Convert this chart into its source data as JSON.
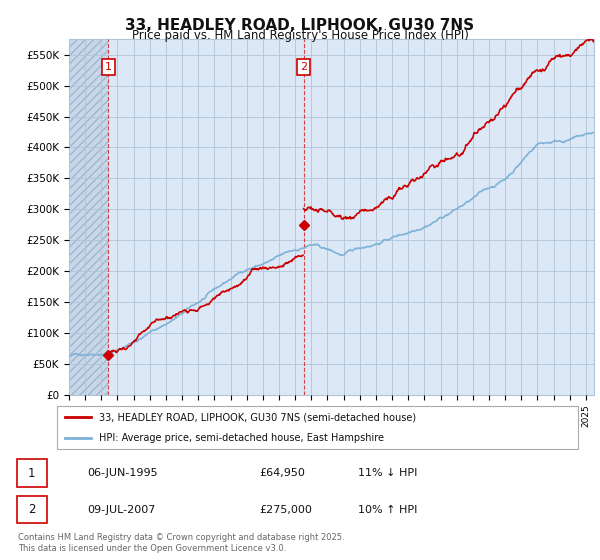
{
  "title": "33, HEADLEY ROAD, LIPHOOK, GU30 7NS",
  "subtitle": "Price paid vs. HM Land Registry's House Price Index (HPI)",
  "ylim": [
    0,
    575000
  ],
  "yticks": [
    0,
    50000,
    100000,
    150000,
    200000,
    250000,
    300000,
    350000,
    400000,
    450000,
    500000,
    550000
  ],
  "ytick_labels": [
    "£0",
    "£50K",
    "£100K",
    "£150K",
    "£200K",
    "£250K",
    "£300K",
    "£350K",
    "£400K",
    "£450K",
    "£500K",
    "£550K"
  ],
  "sale1_date": 1995.43,
  "sale1_price": 64950,
  "sale1_label": "1",
  "sale2_date": 2007.52,
  "sale2_price": 275000,
  "sale2_label": "2",
  "red_line_color": "#cc0000",
  "blue_line_color": "#7fb2d9",
  "marker_color": "#cc0000",
  "vline_color": "#cc0000",
  "legend_line1": "33, HEADLEY ROAD, LIPHOOK, GU30 7NS (semi-detached house)",
  "legend_line2": "HPI: Average price, semi-detached house, East Hampshire",
  "table_row1": [
    "1",
    "06-JUN-1995",
    "£64,950",
    "11% ↓ HPI"
  ],
  "table_row2": [
    "2",
    "09-JUL-2007",
    "£275,000",
    "10% ↑ HPI"
  ],
  "footnote": "Contains HM Land Registry data © Crown copyright and database right 2025.\nThis data is licensed under the Open Government Licence v3.0.",
  "bg_color": "#ffffff",
  "plot_bg_color": "#dce8f5",
  "grid_color": "#b0c4d8",
  "hatch_bg_color": "#c8d8ea",
  "xstart": 1993,
  "xend": 2025.5
}
